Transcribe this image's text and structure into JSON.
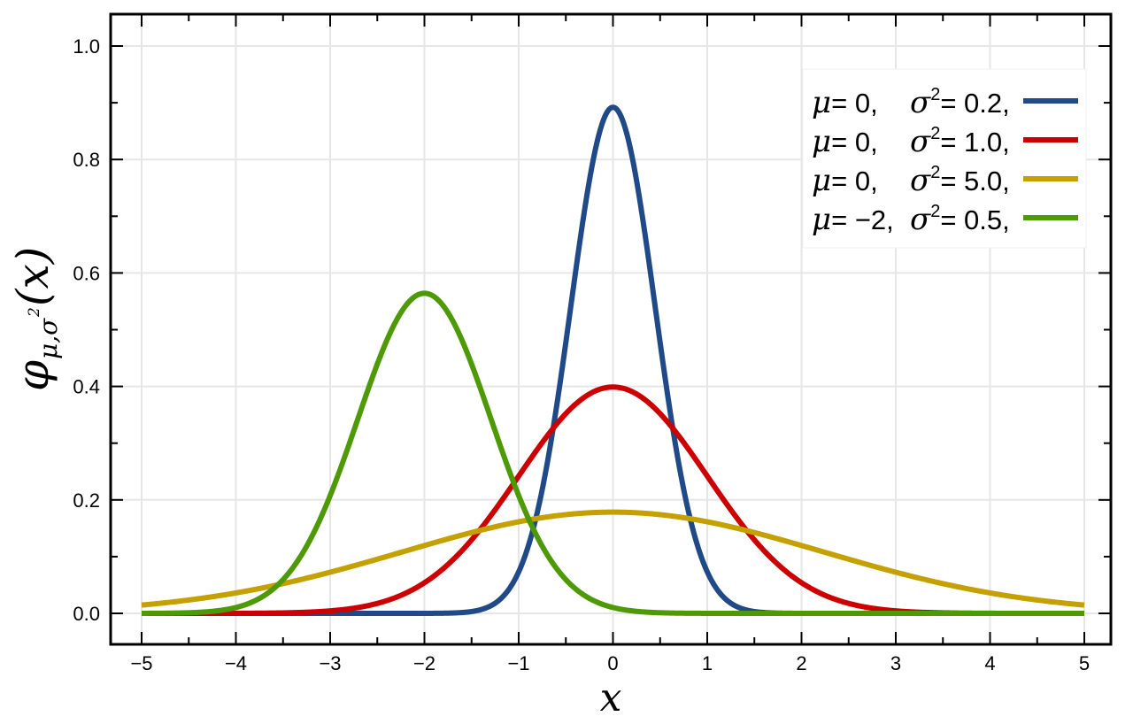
{
  "chart_data": {
    "type": "line",
    "title": "",
    "xlabel": "x",
    "ylabel": "φ_{μ,σ²}(x)",
    "ylabel_parts": {
      "main": "φ",
      "sub": "μ,σ",
      "sup": "2",
      "arg": "(x)"
    },
    "xlim": [
      -5,
      5
    ],
    "ylim": [
      -0.05,
      1.05
    ],
    "xticks": [
      -5,
      -4,
      -3,
      -2,
      -1,
      0,
      1,
      2,
      3,
      4,
      5
    ],
    "xtick_labels": [
      "−5",
      "−4",
      "−3",
      "−2",
      "−1",
      "0",
      "1",
      "2",
      "3",
      "4",
      "5"
    ],
    "yticks": [
      0.0,
      0.2,
      0.4,
      0.6,
      0.8,
      1.0
    ],
    "ytick_labels": [
      "0.0",
      "0.2",
      "0.4",
      "0.6",
      "0.8",
      "1.0"
    ],
    "grid": true,
    "legend_position": "top-right",
    "series": [
      {
        "name": "μ=0, σ²=0.2,",
        "mu_label": "μ = 0,",
        "sigma_label": "σ² = 0.2,",
        "mu_text": "= 0,",
        "sigma_text": "= 0.2,",
        "mu": 0,
        "sigma2": 0.2,
        "color": "#204a87"
      },
      {
        "name": "μ=0, σ²=1.0,",
        "mu_label": "μ = 0,",
        "sigma_label": "σ² = 1.0,",
        "mu_text": "= 0,",
        "sigma_text": "= 1.0,",
        "mu": 0,
        "sigma2": 1.0,
        "color": "#cc0000"
      },
      {
        "name": "μ=0, σ²=5.0,",
        "mu_label": "μ = 0,",
        "sigma_label": "σ² = 5.0,",
        "mu_text": "= 0,",
        "sigma_text": "= 5.0,",
        "mu": 0,
        "sigma2": 5.0,
        "color": "#c4a000"
      },
      {
        "name": "μ=−2, σ²=0.5,",
        "mu_label": "μ = −2,",
        "sigma_label": "σ² = 0.5,",
        "mu_text": "= −2,",
        "sigma_text": "= 0.5,",
        "mu": -2,
        "sigma2": 0.5,
        "color": "#4e9a06"
      }
    ]
  }
}
